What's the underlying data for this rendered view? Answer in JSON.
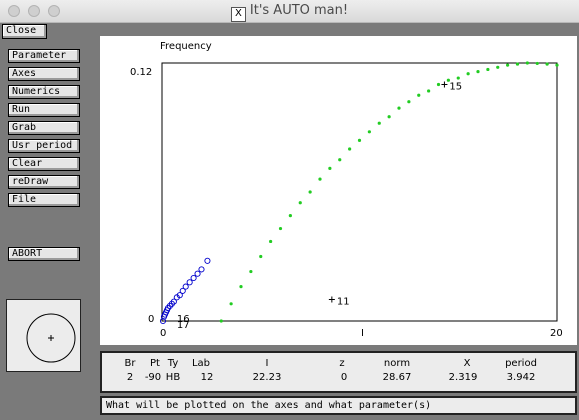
{
  "window": {
    "title": "It's AUTO man!",
    "title_icon": "x11-icon"
  },
  "buttons": {
    "close": "Close",
    "parameter": "Parameter",
    "axes": "Axes",
    "numerics": "Numerics",
    "run": "Run",
    "grab": "Grab",
    "usr_period": "Usr period",
    "clear": "Clear",
    "redraw": "reDraw",
    "file": "File",
    "abort": "ABORT"
  },
  "plot": {
    "ylabel": "Frequency",
    "xlabel": "I",
    "y_tick_top": "0.12",
    "y_tick_bottom": "0",
    "x_tick_left": "0",
    "x_tick_right": "20",
    "labels": [
      "15",
      "11",
      "16",
      "17"
    ]
  },
  "chart_data": {
    "type": "scatter",
    "xlabel": "I",
    "ylabel": "Frequency",
    "xlim": [
      0,
      20
    ],
    "ylim": [
      0,
      0.12
    ],
    "series": [
      {
        "color": "#22cc22",
        "marker": "dot",
        "x": [
          3.0,
          3.5,
          4.0,
          4.5,
          5.0,
          5.5,
          6.0,
          6.5,
          7.0,
          7.5,
          8.0,
          8.5,
          9.0,
          9.5,
          10.0,
          10.5,
          11.0,
          11.5,
          12.0,
          12.5,
          13.0,
          13.5,
          14.0,
          14.5,
          15.0,
          15.5,
          16.0,
          16.5,
          17.0,
          17.5,
          18.0,
          18.5,
          19.0,
          19.5,
          20.0
        ],
        "y": [
          0.0,
          0.008,
          0.016,
          0.023,
          0.03,
          0.037,
          0.043,
          0.049,
          0.055,
          0.06,
          0.066,
          0.071,
          0.075,
          0.08,
          0.084,
          0.088,
          0.092,
          0.095,
          0.099,
          0.102,
          0.105,
          0.107,
          0.11,
          0.112,
          0.113,
          0.115,
          0.116,
          0.117,
          0.118,
          0.119,
          0.1195,
          0.12,
          0.1198,
          0.1195,
          0.119
        ]
      },
      {
        "color": "#0000cc",
        "marker": "circle",
        "x": [
          0.05,
          0.1,
          0.15,
          0.2,
          0.25,
          0.3,
          0.4,
          0.5,
          0.6,
          0.75,
          0.9,
          1.05,
          1.2,
          1.4,
          1.6,
          1.8,
          2.0,
          2.3
        ],
        "y": [
          0.0,
          0.002,
          0.003,
          0.004,
          0.005,
          0.006,
          0.007,
          0.008,
          0.009,
          0.011,
          0.012,
          0.014,
          0.016,
          0.018,
          0.02,
          0.022,
          0.024,
          0.028
        ]
      }
    ],
    "points": [
      {
        "label": "15",
        "x": 14.3,
        "y": 0.11
      },
      {
        "label": "11",
        "x": 8.6,
        "y": 0.01
      },
      {
        "label": "16",
        "x": 0.5,
        "y": 0.0
      },
      {
        "label": "17",
        "x": 0.5,
        "y": -0.001
      }
    ]
  },
  "info": {
    "headers": [
      "Br",
      "Pt",
      "Ty",
      "Lab",
      "I",
      "z",
      "norm",
      "X",
      "period"
    ],
    "values": [
      "2",
      "-90",
      "HB",
      "12",
      "22.23",
      "0",
      "28.67",
      "2.319",
      "3.942"
    ]
  },
  "message": "What will be plotted on the axes and what parameter(s)"
}
